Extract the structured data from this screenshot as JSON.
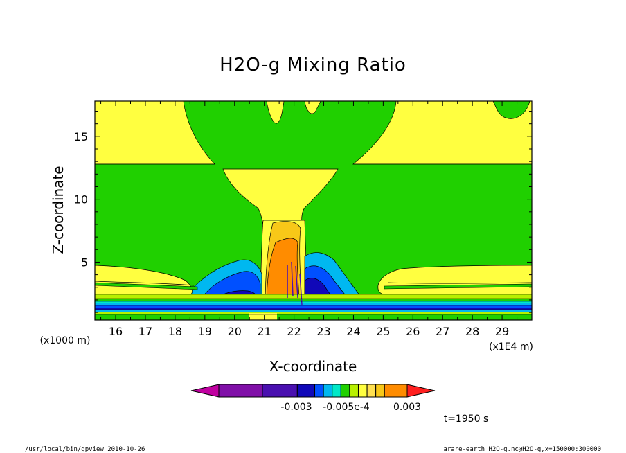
{
  "chart_data": {
    "type": "heatmap",
    "title": "H2O-g Mixing Ratio",
    "xlabel": "X-coordinate",
    "ylabel": "Z-coordinate",
    "x_unit": "(x1E4 m)",
    "y_unit": "(x1000 m)",
    "xlim": [
      15.3,
      30.0
    ],
    "ylim": [
      0.4,
      17.8
    ],
    "x_ticks": [
      "16",
      "17",
      "18",
      "19",
      "20",
      "21",
      "22",
      "23",
      "24",
      "25",
      "26",
      "27",
      "28",
      "29"
    ],
    "y_ticks": [
      "5",
      "10",
      "15"
    ],
    "colorbar": {
      "colors": [
        "#c000a0",
        "#8010a8",
        "#4a10b0",
        "#1008b8",
        "#0050ff",
        "#00b8f0",
        "#00e8c8",
        "#20d000",
        "#b8f000",
        "#ffff40",
        "#ffe050",
        "#f8c818",
        "#ff8c00",
        "#ff2020"
      ],
      "labels": [
        "-0.003",
        "-0.005e-4",
        "0.003"
      ]
    },
    "time_label": "t=1950 s"
  },
  "footer": {
    "left": "/usr/local/bin/gpview  2010-10-26",
    "right": "arare-earth_H2O-g.nc@H2O-g,x=150000:300000"
  }
}
